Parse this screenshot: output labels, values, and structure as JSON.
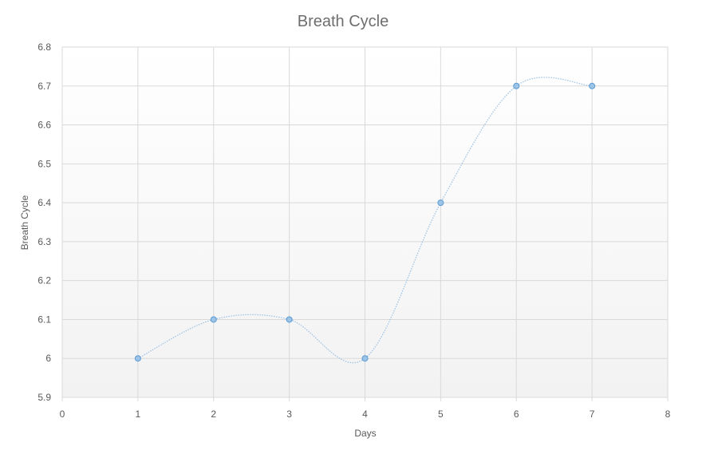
{
  "chart_data": {
    "type": "scatter",
    "title": "Breath Cycle",
    "xlabel": "Days",
    "ylabel": "Breath Cycle",
    "xlim": [
      0,
      8
    ],
    "ylim": [
      5.9,
      6.8
    ],
    "x_ticks": [
      "0",
      "1",
      "2",
      "3",
      "4",
      "5",
      "6",
      "7",
      "8"
    ],
    "y_ticks": [
      "5.9",
      "6",
      "6.1",
      "6.2",
      "6.3",
      "6.4",
      "6.5",
      "6.6",
      "6.7",
      "6.8"
    ],
    "grid": true,
    "smooth_line": true,
    "series": [
      {
        "x": [
          1,
          2,
          3,
          4,
          5,
          6,
          7
        ],
        "y": [
          6.0,
          6.1,
          6.1,
          6.0,
          6.4,
          6.7,
          6.7
        ]
      }
    ],
    "colors": {
      "line": "#9dc3e6",
      "marker_fill": "#9dc3e6",
      "marker_stroke": "#5b9bd5",
      "grid": "#d9d9d9",
      "plot_background_top": "#ffffff",
      "plot_background_bottom": "#f2f2f2"
    }
  }
}
